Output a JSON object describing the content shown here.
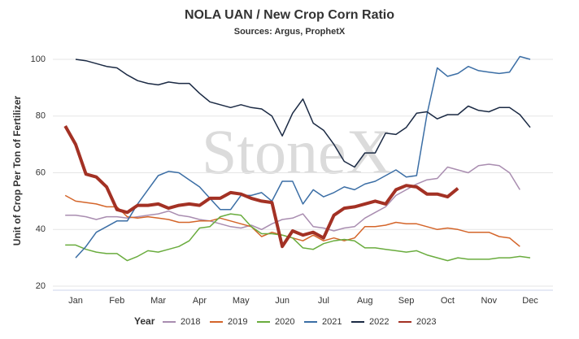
{
  "chart_data": {
    "type": "line",
    "title": "NOLA UAN / New Crop Corn Ratio",
    "subtitle": "Sources: Argus, ProphetX",
    "y_label": "Unit of Crop Per Ton of Fertilizer",
    "watermark": "StoneX",
    "legend_title": "Year",
    "x": [
      0.75,
      1,
      1.25,
      1.5,
      1.75,
      2,
      2.25,
      2.5,
      2.75,
      3,
      3.25,
      3.5,
      3.75,
      4,
      4.25,
      4.5,
      4.75,
      5,
      5.25,
      5.5,
      5.75,
      6,
      6.25,
      6.5,
      6.75,
      7,
      7.25,
      7.5,
      7.75,
      8,
      8.25,
      8.5,
      8.75,
      9,
      9.25,
      9.5,
      9.75,
      10,
      10.25,
      10.5,
      10.75,
      11,
      11.25,
      11.5,
      11.75,
      12
    ],
    "xlim": [
      0.45,
      12.55
    ],
    "xticks": [
      {
        "value": 1,
        "label": "Jan"
      },
      {
        "value": 2,
        "label": "Feb"
      },
      {
        "value": 3,
        "label": "Mar"
      },
      {
        "value": 4,
        "label": "Apr"
      },
      {
        "value": 5,
        "label": "May"
      },
      {
        "value": 6,
        "label": "Jun"
      },
      {
        "value": 7,
        "label": "Jul"
      },
      {
        "value": 8,
        "label": "Aug"
      },
      {
        "value": 9,
        "label": "Sep"
      },
      {
        "value": 10,
        "label": "Oct"
      },
      {
        "value": 11,
        "label": "Nov"
      },
      {
        "value": 12,
        "label": "Dec"
      }
    ],
    "ylim": [
      20,
      100
    ],
    "yticks": [
      20,
      40,
      60,
      80,
      100
    ],
    "grid": true,
    "legend": "bottom",
    "series": [
      {
        "name": "2018",
        "color": "#a98db0",
        "width": 1.5,
        "values": [
          45,
          45,
          44.5,
          43.5,
          44.5,
          44.5,
          44,
          44.5,
          45,
          45.5,
          46.5,
          45,
          44.5,
          43.5,
          43,
          42,
          41,
          40.5,
          41.5,
          40,
          42,
          43.5,
          44,
          45.5,
          41,
          40.5,
          39.5,
          40.5,
          41,
          44,
          46,
          48,
          52,
          54,
          56,
          57.5,
          58,
          62,
          61,
          60,
          62.5,
          63,
          62.5,
          60,
          54,
          null
        ]
      },
      {
        "name": "2019",
        "color": "#d4652a",
        "width": 1.5,
        "values": [
          52,
          50,
          49.5,
          49,
          48,
          48,
          44.5,
          44,
          44.5,
          44,
          43.5,
          42.5,
          42.5,
          43,
          43,
          44,
          43,
          42,
          41,
          37.5,
          39,
          38,
          37,
          36,
          38,
          36,
          37,
          36,
          37,
          41,
          41,
          41.5,
          42.5,
          42,
          42,
          41,
          40,
          40.5,
          40,
          39,
          39,
          39,
          37.5,
          37,
          34,
          null
        ]
      },
      {
        "name": "2020",
        "color": "#6aac3e",
        "width": 1.5,
        "values": [
          34.5,
          34.5,
          33,
          32,
          31.5,
          31.5,
          29,
          30.5,
          32.5,
          32,
          33,
          34,
          36,
          40.5,
          41,
          44.5,
          45.5,
          45,
          41,
          38.5,
          38.5,
          38,
          37,
          33.5,
          33,
          35,
          36,
          36.5,
          36,
          33.5,
          33.5,
          33,
          32.5,
          32,
          32.5,
          31,
          30,
          29,
          30,
          29.5,
          29.5,
          29.5,
          30,
          30,
          30.5,
          30
        ]
      },
      {
        "name": "2021",
        "color": "#3b6ea5",
        "width": 1.5,
        "values": [
          null,
          30,
          34,
          39,
          41,
          43,
          43,
          49,
          54,
          59,
          60.5,
          60,
          57.5,
          55,
          51,
          47,
          47,
          52,
          52,
          53,
          50,
          57,
          57,
          49,
          54,
          51.5,
          53,
          55,
          54,
          56,
          57,
          59,
          61,
          58.5,
          59,
          80.5,
          97,
          94,
          95,
          97.5,
          96,
          95.5,
          95,
          95.5,
          101,
          100
        ]
      },
      {
        "name": "2022",
        "color": "#1b2a44",
        "width": 1.5,
        "values": [
          null,
          100,
          99.5,
          98.5,
          97.5,
          97,
          94.5,
          92.5,
          91.5,
          91,
          92,
          91.5,
          91.5,
          88,
          85,
          84,
          83,
          84,
          83,
          82.5,
          80,
          73,
          81,
          86,
          77.5,
          75,
          70,
          64,
          62,
          67,
          67,
          74,
          73.5,
          76,
          81,
          81.5,
          79,
          80.5,
          80.5,
          83.5,
          82,
          81.5,
          83,
          83,
          80.5,
          76
        ]
      },
      {
        "name": "2023",
        "color": "#a33124",
        "width": 4,
        "values": [
          76.5,
          70,
          59.5,
          58.5,
          55,
          47,
          46,
          48.5,
          48.5,
          49,
          47.5,
          48.5,
          49,
          48.5,
          51,
          51,
          53,
          52.5,
          51,
          50,
          49.5,
          34,
          39.5,
          38,
          39,
          37,
          45,
          47.5,
          48,
          49,
          50,
          49,
          54,
          55.5,
          55,
          52.5,
          52.5,
          51.5,
          54.5,
          null,
          null,
          null,
          null,
          null,
          null,
          null
        ]
      }
    ]
  }
}
